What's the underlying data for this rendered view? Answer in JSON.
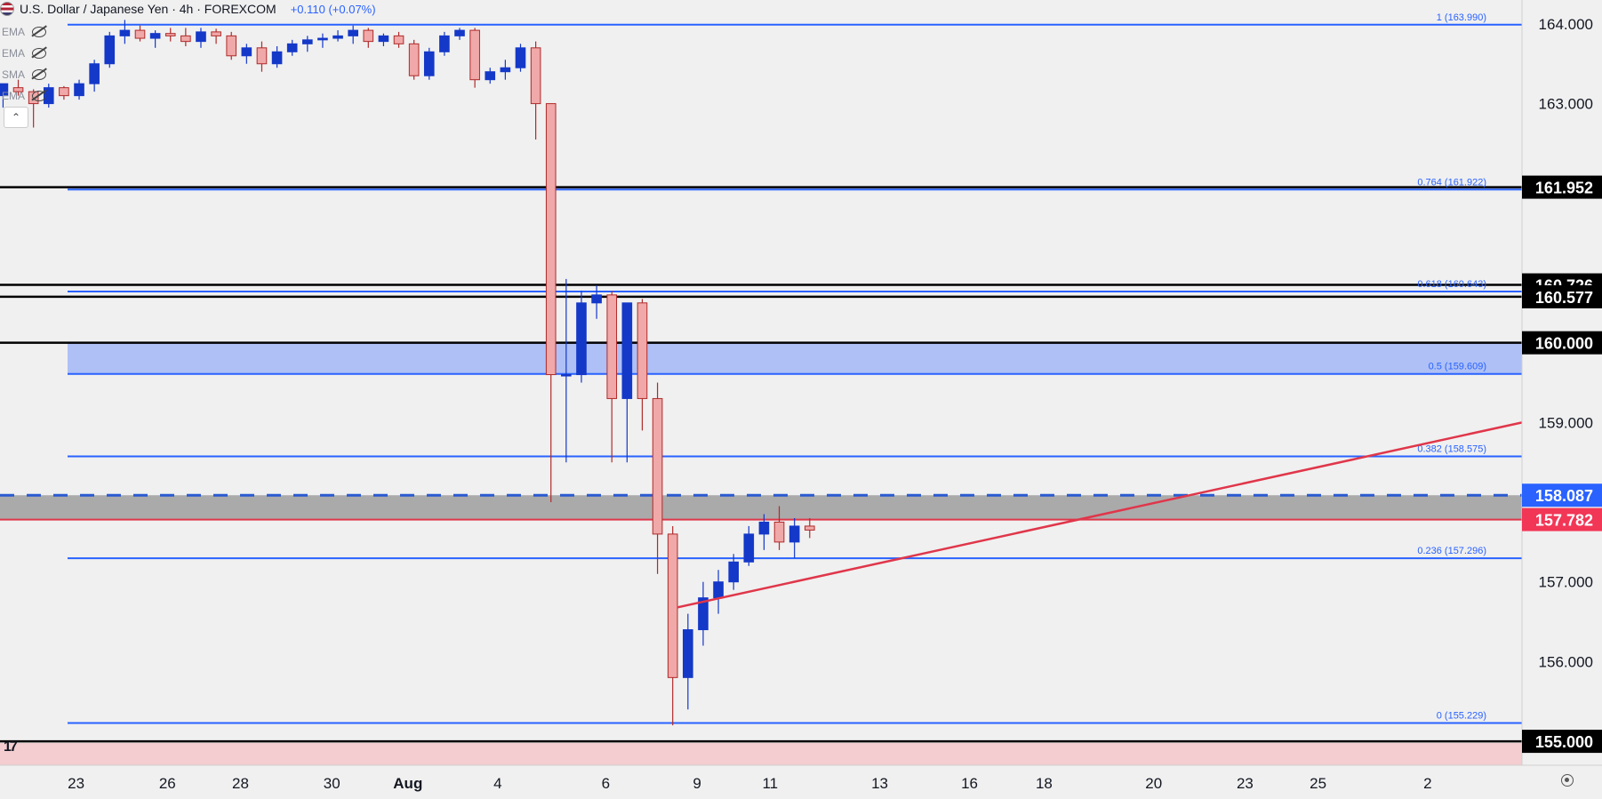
{
  "header": {
    "title": "U.S. Dollar / Japanese Yen · 4h · FOREXCOM",
    "change": "+0.110 (+0.07%)"
  },
  "indicators": [
    "EMA",
    "EMA",
    "SMA",
    "EMA"
  ],
  "colors": {
    "up": "#1438c8",
    "down_fill": "#f0a8a8",
    "down_border": "#b02a2a",
    "fib": "#2962ff",
    "trendline": "#e0364a",
    "zone": "#aec0f5",
    "gray_zone": "#aaaaaa",
    "bottom_zone": "#f3cdd0",
    "black_line": "#000000",
    "label_blue": "#2962ff",
    "label_red": "#f23656"
  },
  "chart_data": {
    "type": "candlestick",
    "y_range": [
      154.7,
      164.3
    ],
    "x_range": [
      -4,
      96
    ],
    "x_ticks": [
      {
        "label": "23",
        "x": 1
      },
      {
        "label": "26",
        "x": 7
      },
      {
        "label": "28",
        "x": 11.8
      },
      {
        "label": "30",
        "x": 17.8
      },
      {
        "label": "Aug",
        "x": 22.8
      },
      {
        "label": "4",
        "x": 28.7
      },
      {
        "label": "6",
        "x": 35.8
      },
      {
        "label": "9",
        "x": 41.8
      },
      {
        "label": "11",
        "x": 46.6
      },
      {
        "label": "13",
        "x": 53.8
      },
      {
        "label": "16",
        "x": 59.7
      },
      {
        "label": "18",
        "x": 64.6
      },
      {
        "label": "20",
        "x": 71.8
      },
      {
        "label": "23",
        "x": 77.8
      },
      {
        "label": "25",
        "x": 82.6
      },
      {
        "label": "2",
        "x": 89.8
      }
    ],
    "y_ticks": [
      {
        "label": "164.000",
        "value": 164.0
      },
      {
        "label": "163.000",
        "value": 163.0
      },
      {
        "label": "159.000",
        "value": 159.0
      },
      {
        "label": "157.000",
        "value": 157.0
      },
      {
        "label": "156.000",
        "value": 156.0
      }
    ],
    "price_labels": [
      {
        "label": "161.952",
        "value": 161.952,
        "style": "black"
      },
      {
        "label": "160.726",
        "value": 160.726,
        "style": "black"
      },
      {
        "label": "160.577",
        "value": 160.577,
        "style": "black"
      },
      {
        "label": "160.000",
        "value": 160.0,
        "style": "black"
      },
      {
        "label": "158.087",
        "value": 158.087,
        "style": "blue"
      },
      {
        "label": "157.782",
        "value": 157.782,
        "style": "red"
      },
      {
        "label": "155.000",
        "value": 155.0,
        "style": "black"
      }
    ],
    "fib_levels": [
      {
        "label": "1 (163.990)",
        "value": 163.99
      },
      {
        "label": "0.764 (161.922)",
        "value": 161.922
      },
      {
        "label": "0.618 (160.643)",
        "value": 160.643
      },
      {
        "label": "0.5 (159.609)",
        "value": 159.609
      },
      {
        "label": "0.382 (158.575)",
        "value": 158.575
      },
      {
        "label": "0.236 (157.296)",
        "value": 157.296
      },
      {
        "label": "0 (155.229)",
        "value": 155.229
      }
    ],
    "black_lines": [
      161.952,
      160.726,
      160.577,
      160.0,
      155.0
    ],
    "zones": [
      {
        "from": 159.609,
        "to": 160.0,
        "kind": "blue"
      },
      {
        "from": 157.782,
        "to": 158.087,
        "kind": "gray"
      },
      {
        "from": 154.7,
        "to": 154.98,
        "kind": "pink"
      }
    ],
    "dashed_line": 158.087,
    "red_line": 157.782,
    "trendline": [
      {
        "x": 40.5,
        "y": 156.68
      },
      {
        "x": 96,
        "y": 159.0
      }
    ],
    "candles": [
      [
        -3.8,
        163.1,
        163.2,
        162.95,
        163.25
      ],
      [
        -2.8,
        163.2,
        163.3,
        163.1,
        163.15
      ],
      [
        -1.8,
        163.15,
        163.18,
        162.7,
        163.0
      ],
      [
        -0.8,
        163.0,
        163.25,
        162.95,
        163.2
      ],
      [
        0.2,
        163.2,
        163.22,
        163.05,
        163.1
      ],
      [
        1.2,
        163.1,
        163.3,
        163.05,
        163.25
      ],
      [
        2.2,
        163.25,
        163.55,
        163.15,
        163.5
      ],
      [
        3.2,
        163.5,
        163.9,
        163.45,
        163.85
      ],
      [
        4.2,
        163.85,
        164.05,
        163.75,
        163.92
      ],
      [
        5.2,
        163.92,
        163.98,
        163.78,
        163.82
      ],
      [
        6.2,
        163.82,
        163.92,
        163.7,
        163.88
      ],
      [
        7.2,
        163.88,
        163.95,
        163.78,
        163.85
      ],
      [
        8.2,
        163.85,
        163.95,
        163.72,
        163.78
      ],
      [
        9.2,
        163.78,
        163.95,
        163.7,
        163.9
      ],
      [
        10.2,
        163.9,
        163.94,
        163.75,
        163.85
      ],
      [
        11.2,
        163.85,
        163.9,
        163.55,
        163.6
      ],
      [
        12.2,
        163.6,
        163.75,
        163.5,
        163.7
      ],
      [
        13.2,
        163.7,
        163.78,
        163.4,
        163.5
      ],
      [
        14.2,
        163.5,
        163.72,
        163.45,
        163.65
      ],
      [
        15.2,
        163.65,
        163.8,
        163.6,
        163.75
      ],
      [
        16.2,
        163.75,
        163.85,
        163.65,
        163.8
      ],
      [
        17.2,
        163.8,
        163.88,
        163.7,
        163.82
      ],
      [
        18.2,
        163.82,
        163.92,
        163.78,
        163.85
      ],
      [
        19.2,
        163.85,
        163.98,
        163.75,
        163.92
      ],
      [
        20.2,
        163.92,
        163.95,
        163.7,
        163.78
      ],
      [
        21.2,
        163.78,
        163.88,
        163.72,
        163.85
      ],
      [
        22.2,
        163.85,
        163.9,
        163.7,
        163.75
      ],
      [
        23.2,
        163.75,
        163.8,
        163.3,
        163.35
      ],
      [
        24.2,
        163.35,
        163.7,
        163.3,
        163.65
      ],
      [
        25.2,
        163.65,
        163.9,
        163.6,
        163.85
      ],
      [
        26.2,
        163.85,
        163.95,
        163.8,
        163.92
      ],
      [
        27.2,
        163.92,
        163.95,
        163.2,
        163.3
      ],
      [
        28.2,
        163.3,
        163.45,
        163.25,
        163.4
      ],
      [
        29.2,
        163.4,
        163.55,
        163.3,
        163.45
      ],
      [
        30.2,
        163.45,
        163.75,
        163.4,
        163.7
      ],
      [
        31.2,
        163.7,
        163.78,
        162.55,
        163.0
      ],
      [
        32.2,
        163.0,
        163.0,
        158.0,
        159.6
      ],
      [
        33.2,
        159.6,
        160.8,
        158.5,
        159.6
      ],
      [
        34.2,
        159.6,
        160.65,
        159.5,
        160.5
      ],
      [
        35.2,
        160.5,
        160.72,
        160.3,
        160.6
      ],
      [
        36.2,
        160.6,
        160.65,
        158.5,
        159.3
      ],
      [
        37.2,
        159.3,
        160.5,
        158.5,
        160.5
      ],
      [
        38.2,
        160.5,
        160.55,
        158.9,
        159.3
      ],
      [
        39.2,
        159.3,
        159.5,
        157.1,
        157.6
      ],
      [
        40.2,
        157.6,
        157.7,
        155.2,
        155.8
      ],
      [
        41.2,
        155.8,
        156.6,
        155.4,
        156.4
      ],
      [
        42.2,
        156.4,
        157.0,
        156.2,
        156.8
      ],
      [
        43.2,
        156.8,
        157.15,
        156.6,
        157.0
      ],
      [
        44.2,
        157.0,
        157.35,
        156.9,
        157.25
      ],
      [
        45.2,
        157.25,
        157.7,
        157.2,
        157.6
      ],
      [
        46.2,
        157.6,
        157.85,
        157.4,
        157.75
      ],
      [
        47.2,
        157.75,
        157.95,
        157.4,
        157.5
      ],
      [
        48.2,
        157.5,
        157.8,
        157.3,
        157.7
      ],
      [
        49.2,
        157.7,
        157.8,
        157.55,
        157.65
      ]
    ]
  }
}
